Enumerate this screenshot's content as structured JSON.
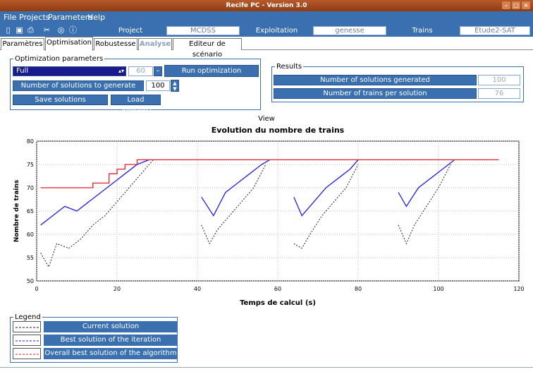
{
  "window": {
    "title": "Recife PC - Version 3.0"
  },
  "menu": [
    "File",
    "Projects",
    "Parameters",
    "Help"
  ],
  "toolbar": {
    "project_label": "Project",
    "project_value": "MCDSS",
    "exploitation_label": "Exploitation",
    "exploitation_value": "genesse",
    "trains_label": "Trains",
    "trains_value": "Etude2-SAT"
  },
  "tabs": [
    "Paramètres",
    "Optimisation",
    "Robustesse",
    "Analyse",
    "Editeur de scénario"
  ],
  "optimization": {
    "legend": "Optimization parameters",
    "mode": "Full",
    "mode_value": "60",
    "run_button": "Run optimization",
    "num_solutions_label": "Number of solutions to generate",
    "num_solutions_value": "100",
    "save_button": "Save solutions",
    "load_button": "Load solutions"
  },
  "results": {
    "legend": "Results",
    "generated_label": "Number of solutions generated",
    "generated_value": "100",
    "trains_label": "Number of trains per solution",
    "trains_value": "76"
  },
  "view_label": "View",
  "chart_data": {
    "type": "line",
    "title": "Evolution du nombre de trains",
    "xlabel": "Temps de calcul (s)",
    "ylabel": "Nombre de trains",
    "xlim": [
      0,
      120
    ],
    "ylim": [
      50,
      80
    ],
    "xticks": [
      0,
      20,
      40,
      60,
      80,
      100,
      120
    ],
    "yticks": [
      50,
      55,
      60,
      65,
      70,
      75,
      80
    ],
    "grid": true,
    "series": [
      {
        "name": "Overall best solution of the algorithm",
        "color": "#e0202a",
        "style": "solid",
        "x": [
          1,
          14,
          14,
          18,
          18,
          20,
          20,
          22,
          22,
          23,
          23,
          25,
          25,
          115
        ],
        "values": [
          70,
          70,
          71,
          71,
          73,
          73,
          74,
          74,
          75,
          75,
          75,
          75,
          76,
          76
        ]
      },
      {
        "name": "Best solution of the iteration",
        "color": "#2020d8",
        "style": "solid",
        "segments": [
          {
            "x": [
              1,
              4,
              7,
              10,
              13,
              16,
              19,
              22,
              25,
              28
            ],
            "values": [
              62,
              64,
              66,
              65,
              67,
              69,
              71,
              73,
              75,
              76
            ]
          },
          {
            "x": [
              41,
              44,
              47,
              50,
              53,
              56,
              58
            ],
            "values": [
              68,
              64,
              69,
              71,
              73,
              75,
              76
            ]
          },
          {
            "x": [
              64,
              66,
              69,
              72,
              75,
              78,
              80
            ],
            "values": [
              68,
              64,
              67,
              70,
              72,
              74,
              76
            ]
          },
          {
            "x": [
              90,
              92,
              95,
              98,
              101,
              104
            ],
            "values": [
              69,
              66,
              70,
              72,
              74,
              76
            ]
          }
        ]
      },
      {
        "name": "Current solution",
        "color": "#222222",
        "style": "dashed",
        "segments": [
          {
            "x": [
              1,
              3,
              5,
              8,
              11,
              14,
              17,
              20,
              23,
              26,
              29
            ],
            "values": [
              56,
              53,
              58,
              57,
              59,
              62,
              64,
              67,
              70,
              73,
              76
            ]
          },
          {
            "x": [
              41,
              43,
              45,
              48,
              51,
              54,
              57
            ],
            "values": [
              62,
              58,
              61,
              64,
              67,
              70,
              75
            ]
          },
          {
            "x": [
              64,
              66,
              68,
              71,
              74,
              77,
              80
            ],
            "values": [
              58,
              57,
              60,
              64,
              67,
              70,
              75
            ]
          },
          {
            "x": [
              90,
              92,
              94,
              97,
              100,
              103
            ],
            "values": [
              62,
              58,
              62,
              66,
              70,
              75
            ]
          }
        ]
      }
    ]
  },
  "legend": {
    "title": "Legend",
    "items": [
      "Current solution",
      "Best solution of the iteration",
      "Overall best solution of the algorithm"
    ]
  }
}
